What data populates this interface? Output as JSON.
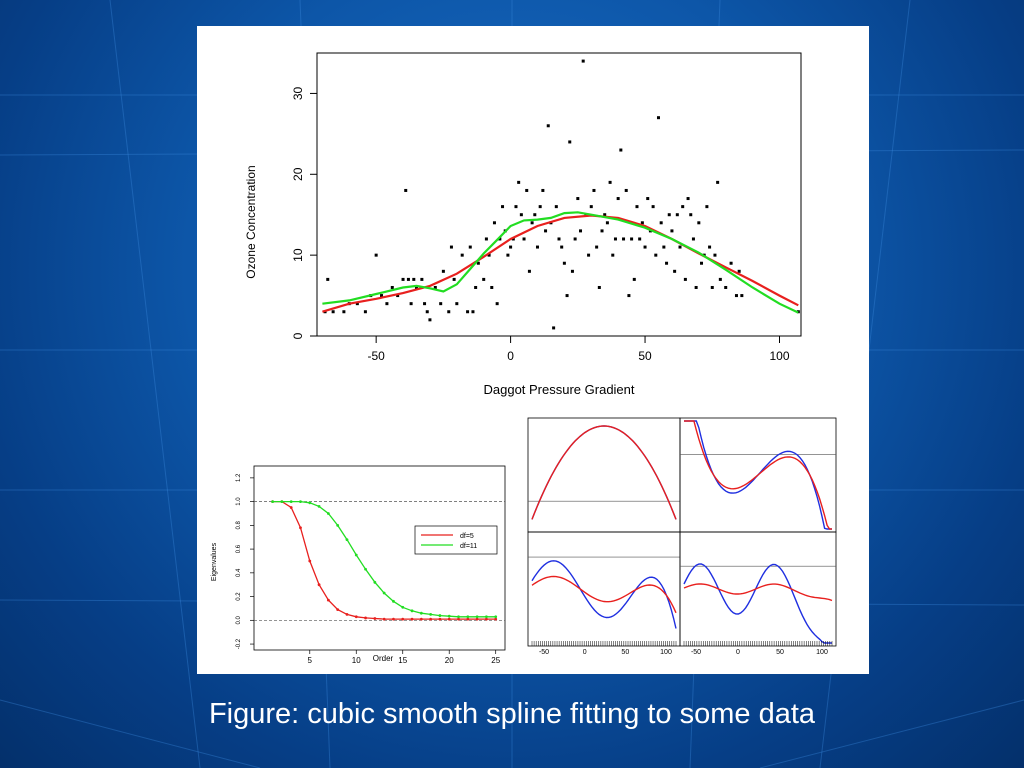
{
  "slide": {
    "caption": "Figure: cubic smooth spline fitting to some data",
    "colors": {
      "background": "#0d56a8",
      "panel": "#ffffff",
      "caption": "#ffffff"
    }
  },
  "chart_data": [
    {
      "type": "scatter",
      "xlabel": "Daggot Pressure Gradient",
      "ylabel": "Ozone Concentration",
      "xlim": [
        -72,
        108
      ],
      "ylim": [
        0,
        35
      ],
      "xticks": [
        -50,
        0,
        50,
        100
      ],
      "yticks": [
        0,
        10,
        20,
        30
      ],
      "points": [
        [
          -69,
          3
        ],
        [
          -68,
          7
        ],
        [
          -66,
          3
        ],
        [
          -62,
          3
        ],
        [
          -60,
          4
        ],
        [
          -57,
          4
        ],
        [
          -54,
          3
        ],
        [
          -52,
          5
        ],
        [
          -50,
          10
        ],
        [
          -48,
          5
        ],
        [
          -46,
          4
        ],
        [
          -44,
          6
        ],
        [
          -42,
          5
        ],
        [
          -40,
          7
        ],
        [
          -39,
          18
        ],
        [
          -38,
          7
        ],
        [
          -37,
          4
        ],
        [
          -36,
          7
        ],
        [
          -35,
          6
        ],
        [
          -33,
          7
        ],
        [
          -32,
          4
        ],
        [
          -31,
          3
        ],
        [
          -30,
          2
        ],
        [
          -28,
          6
        ],
        [
          -26,
          4
        ],
        [
          -25,
          8
        ],
        [
          -23,
          3
        ],
        [
          -22,
          11
        ],
        [
          -21,
          7
        ],
        [
          -20,
          4
        ],
        [
          -18,
          10
        ],
        [
          -16,
          3
        ],
        [
          -15,
          11
        ],
        [
          -14,
          3
        ],
        [
          -13,
          6
        ],
        [
          -12,
          9
        ],
        [
          -10,
          7
        ],
        [
          -9,
          12
        ],
        [
          -8,
          10
        ],
        [
          -7,
          6
        ],
        [
          -6,
          14
        ],
        [
          -5,
          4
        ],
        [
          -4,
          12
        ],
        [
          -3,
          16
        ],
        [
          -2,
          13
        ],
        [
          -1,
          10
        ],
        [
          0,
          11
        ],
        [
          1,
          12
        ],
        [
          2,
          16
        ],
        [
          3,
          19
        ],
        [
          4,
          15
        ],
        [
          5,
          12
        ],
        [
          6,
          18
        ],
        [
          7,
          8
        ],
        [
          8,
          14
        ],
        [
          9,
          15
        ],
        [
          10,
          11
        ],
        [
          11,
          16
        ],
        [
          12,
          18
        ],
        [
          13,
          13
        ],
        [
          14,
          26
        ],
        [
          15,
          14
        ],
        [
          16,
          1
        ],
        [
          17,
          16
        ],
        [
          18,
          12
        ],
        [
          19,
          11
        ],
        [
          20,
          9
        ],
        [
          21,
          5
        ],
        [
          22,
          24
        ],
        [
          23,
          8
        ],
        [
          24,
          12
        ],
        [
          25,
          17
        ],
        [
          26,
          13
        ],
        [
          27,
          34
        ],
        [
          28,
          15
        ],
        [
          29,
          10
        ],
        [
          30,
          16
        ],
        [
          31,
          18
        ],
        [
          32,
          11
        ],
        [
          33,
          6
        ],
        [
          34,
          13
        ],
        [
          35,
          15
        ],
        [
          36,
          14
        ],
        [
          37,
          19
        ],
        [
          38,
          10
        ],
        [
          39,
          12
        ],
        [
          40,
          17
        ],
        [
          41,
          23
        ],
        [
          42,
          12
        ],
        [
          43,
          18
        ],
        [
          44,
          5
        ],
        [
          45,
          12
        ],
        [
          46,
          7
        ],
        [
          47,
          16
        ],
        [
          48,
          12
        ],
        [
          49,
          14
        ],
        [
          50,
          11
        ],
        [
          51,
          17
        ],
        [
          52,
          13
        ],
        [
          53,
          16
        ],
        [
          54,
          10
        ],
        [
          55,
          27
        ],
        [
          56,
          14
        ],
        [
          57,
          11
        ],
        [
          58,
          9
        ],
        [
          59,
          15
        ],
        [
          60,
          13
        ],
        [
          61,
          8
        ],
        [
          62,
          15
        ],
        [
          63,
          11
        ],
        [
          64,
          16
        ],
        [
          65,
          7
        ],
        [
          66,
          17
        ],
        [
          67,
          15
        ],
        [
          68,
          12
        ],
        [
          69,
          6
        ],
        [
          70,
          14
        ],
        [
          71,
          9
        ],
        [
          72,
          10
        ],
        [
          73,
          16
        ],
        [
          74,
          11
        ],
        [
          75,
          6
        ],
        [
          76,
          10
        ],
        [
          77,
          19
        ],
        [
          78,
          7
        ],
        [
          80,
          6
        ],
        [
          82,
          9
        ],
        [
          84,
          5
        ],
        [
          85,
          8
        ],
        [
          86,
          5
        ],
        [
          107,
          3
        ]
      ],
      "series": [
        {
          "name": "",
          "color": "#e8201e",
          "x": [
            -70,
            -60,
            -50,
            -40,
            -30,
            -20,
            -10,
            0,
            10,
            20,
            30,
            40,
            50,
            60,
            70,
            80,
            90,
            100,
            107
          ],
          "y": [
            3,
            4,
            4.6,
            5.3,
            6.2,
            7.7,
            9.8,
            12,
            13.6,
            14.6,
            14.9,
            14.6,
            13.6,
            12,
            10.2,
            8.5,
            6.8,
            5,
            3.8
          ]
        },
        {
          "name": "",
          "color": "#22dd22",
          "x": [
            -70,
            -60,
            -50,
            -40,
            -35,
            -30,
            -25,
            -20,
            -15,
            -10,
            -5,
            0,
            5,
            10,
            15,
            20,
            25,
            30,
            40,
            50,
            60,
            70,
            80,
            90,
            100,
            107
          ],
          "y": [
            4,
            4.4,
            5.2,
            6,
            6.2,
            5.9,
            5.5,
            6.4,
            8.3,
            10.2,
            11.9,
            13.6,
            14.3,
            14.4,
            14.6,
            15.2,
            15.3,
            15,
            14.4,
            13.4,
            12,
            10.3,
            8.2,
            6,
            4,
            2.9
          ]
        }
      ]
    },
    {
      "type": "line",
      "xlabel": "Order",
      "ylabel": "Eigenvalues",
      "xlim": [
        -1,
        26
      ],
      "ylim": [
        -0.25,
        1.3
      ],
      "xticks": [
        5,
        10,
        15,
        20,
        25
      ],
      "yticks": [
        "1.2",
        "1.0",
        "0.8",
        "0.6",
        "0.4",
        "0.2",
        "0.0",
        "-0.2"
      ],
      "reference_lines": [
        1.0,
        0.0
      ],
      "legend": [
        "df=5",
        "df=11"
      ],
      "series": [
        {
          "name": "df=5",
          "color": "#e8201e",
          "x": [
            1,
            2,
            3,
            4,
            5,
            6,
            7,
            8,
            9,
            10,
            11,
            12,
            13,
            14,
            15,
            16,
            17,
            18,
            19,
            20,
            21,
            22,
            23,
            24,
            25
          ],
          "y": [
            1,
            1,
            0.95,
            0.78,
            0.5,
            0.3,
            0.17,
            0.09,
            0.05,
            0.03,
            0.02,
            0.015,
            0.01,
            0.01,
            0.01,
            0.01,
            0.01,
            0.01,
            0.01,
            0.01,
            0.01,
            0.01,
            0.01,
            0.01,
            0.01
          ]
        },
        {
          "name": "df=11",
          "color": "#22dd22",
          "x": [
            1,
            2,
            3,
            4,
            5,
            6,
            7,
            8,
            9,
            10,
            11,
            12,
            13,
            14,
            15,
            16,
            17,
            18,
            19,
            20,
            21,
            22,
            23,
            24,
            25
          ],
          "y": [
            1,
            1,
            1,
            1,
            0.99,
            0.96,
            0.9,
            0.8,
            0.68,
            0.55,
            0.43,
            0.32,
            0.23,
            0.16,
            0.11,
            0.08,
            0.06,
            0.05,
            0.04,
            0.035,
            0.03,
            0.03,
            0.03,
            0.03,
            0.03
          ]
        }
      ]
    },
    {
      "type": "line",
      "panels": "2x2 grid of basis functions",
      "xticks": [
        -50,
        0,
        50,
        100
      ],
      "series_colors": [
        "#1f2fe0",
        "#e8201e"
      ]
    }
  ]
}
